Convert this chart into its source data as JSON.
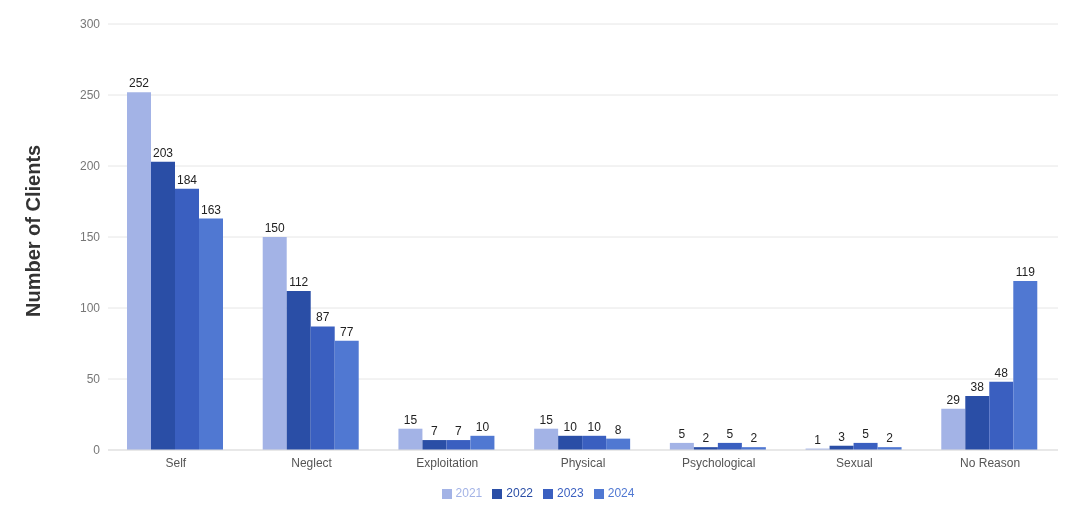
{
  "chart_data": {
    "type": "bar",
    "ylabel": "Number of Clients",
    "categories": [
      "Self",
      "Neglect",
      "Exploitation",
      "Physical",
      "Psychological",
      "Sexual",
      "No Reason"
    ],
    "series": [
      {
        "name": "2021",
        "color": "#a3b3e6",
        "values": [
          252,
          150,
          15,
          15,
          5,
          1,
          29
        ]
      },
      {
        "name": "2022",
        "color": "#2a4ea6",
        "values": [
          203,
          112,
          7,
          10,
          2,
          3,
          38
        ]
      },
      {
        "name": "2023",
        "color": "#3a5fc0",
        "values": [
          184,
          87,
          7,
          10,
          5,
          5,
          48
        ]
      },
      {
        "name": "2024",
        "color": "#5078d2",
        "values": [
          163,
          77,
          10,
          8,
          2,
          2,
          119
        ]
      }
    ],
    "ylim": [
      0,
      300
    ],
    "yticks": [
      0,
      50,
      100,
      150,
      200,
      250,
      300
    ],
    "grid": "y",
    "legend": "bottom",
    "data_labels": true
  }
}
